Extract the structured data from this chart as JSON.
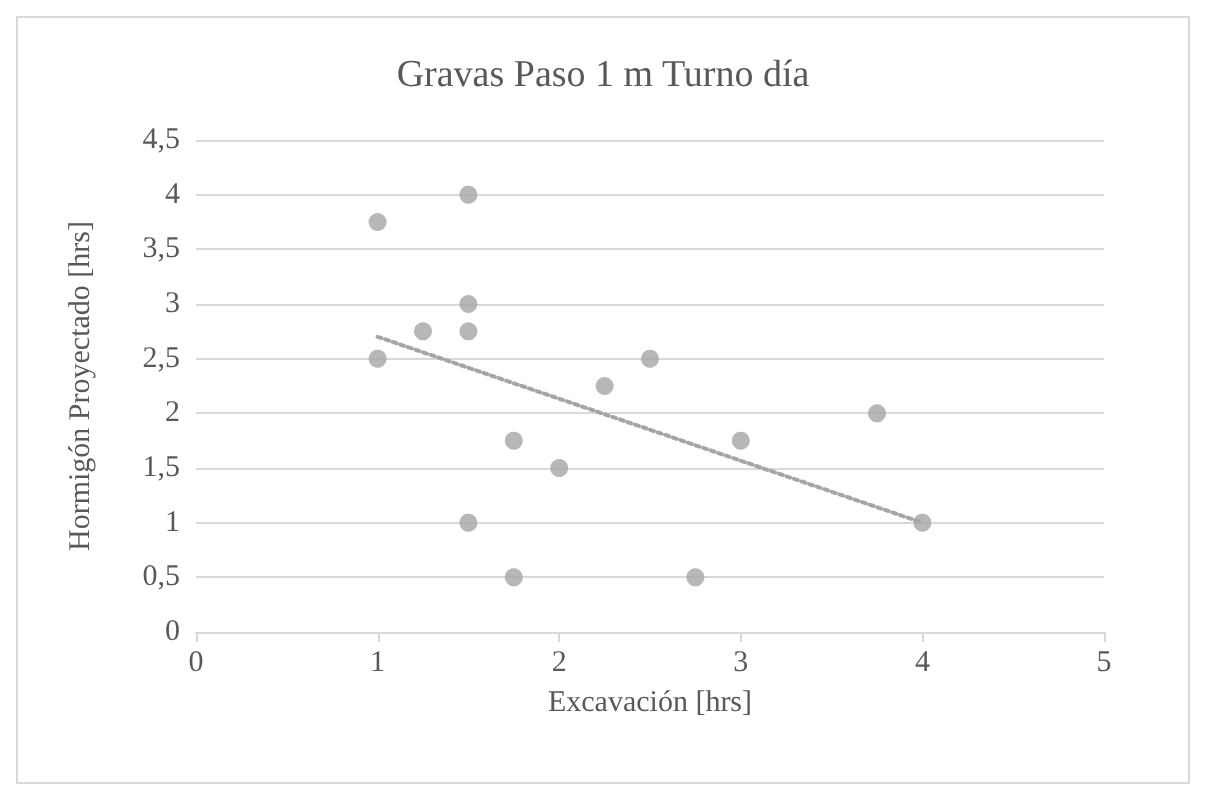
{
  "chart_data": {
    "type": "scatter",
    "title": "Gravas Paso 1 m Turno día",
    "xlabel": "Excavación [hrs]",
    "ylabel": "Hormigón Proyectado [hrs]",
    "series": [
      {
        "color": "#a5a5a5",
        "x": [
          1,
          1,
          1.25,
          1.5,
          1.5,
          1.5,
          1.5,
          1.75,
          1.75,
          2,
          2.25,
          2.5,
          2.75,
          3,
          3.75,
          4
        ],
        "values": [
          3.75,
          2.5,
          2.75,
          4,
          3,
          2.75,
          1,
          1.75,
          0.5,
          1.5,
          2.25,
          2.5,
          0.5,
          1.75,
          2,
          1
        ]
      },
      {
        "type": "line",
        "color": "#a5a5a5",
        "line_style": "dotted",
        "marker": "none",
        "x": [
          1,
          4
        ],
        "values": [
          2.7,
          1.0
        ]
      }
    ],
    "xlim": [
      0,
      5
    ],
    "xticks": [
      0,
      1,
      2,
      3,
      4,
      5
    ],
    "ylim": [
      0,
      4.5
    ],
    "yticks": [
      0,
      {
        "value": 0.5,
        "label": "0,5"
      },
      1,
      {
        "value": 1.5,
        "label": "1,5"
      },
      2,
      {
        "value": 2.5,
        "label": "2,5"
      },
      3,
      {
        "value": 3.5,
        "label": "3,5"
      },
      4,
      {
        "value": 4.5,
        "label": "4,5"
      }
    ],
    "grid": "y",
    "marker": "circle"
  }
}
